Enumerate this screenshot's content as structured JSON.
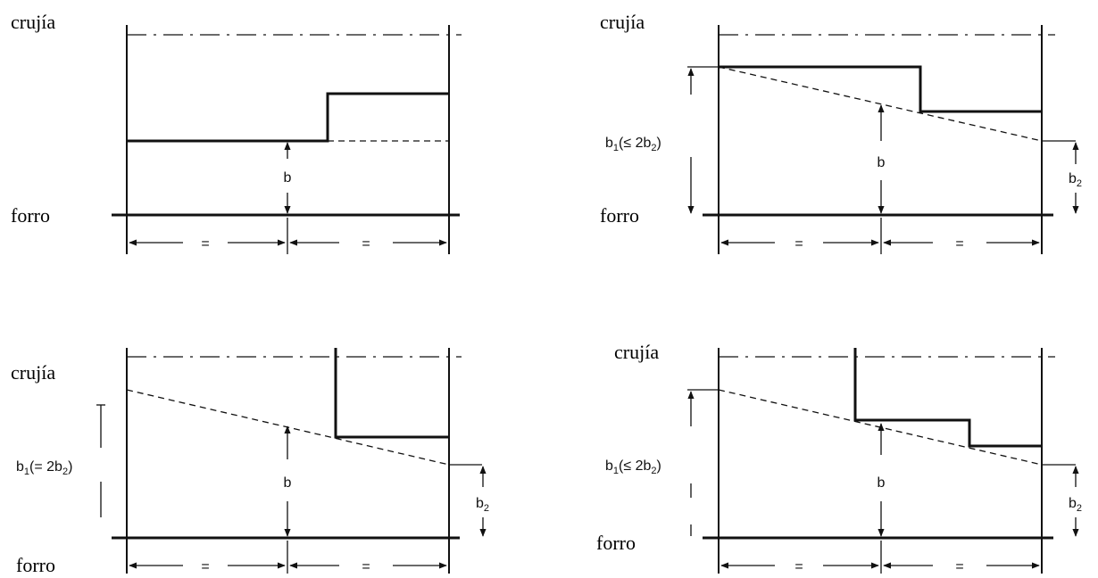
{
  "panels": [
    {
      "id": "top-left",
      "crujia": "crujía",
      "forro": "forro",
      "b": "b",
      "equal": "="
    },
    {
      "id": "top-right",
      "crujia": "crujía",
      "forro": "forro",
      "b": "b",
      "equal": "=",
      "b1": "b",
      "b1_sub": "1",
      "b1_rel": "(≤ 2b",
      "b1_rel_sub": "2",
      "b1_close": ")",
      "b2": "b",
      "b2_sub": "2"
    },
    {
      "id": "bottom-left",
      "crujia": "crujía",
      "forro": "forro",
      "b": "b",
      "equal": "=",
      "b1": "b",
      "b1_sub": "1",
      "b1_rel": "(= 2b",
      "b1_rel_sub": "2",
      "b1_close": ")",
      "b2": "b",
      "b2_sub": "2"
    },
    {
      "id": "bottom-right",
      "crujia": "crujía",
      "forro": "forro",
      "b": "b",
      "equal": "=",
      "b1": "b",
      "b1_sub": "1",
      "b1_rel": "(≤ 2b",
      "b1_rel_sub": "2",
      "b1_close": ")",
      "b2": "b",
      "b2_sub": "2"
    }
  ]
}
